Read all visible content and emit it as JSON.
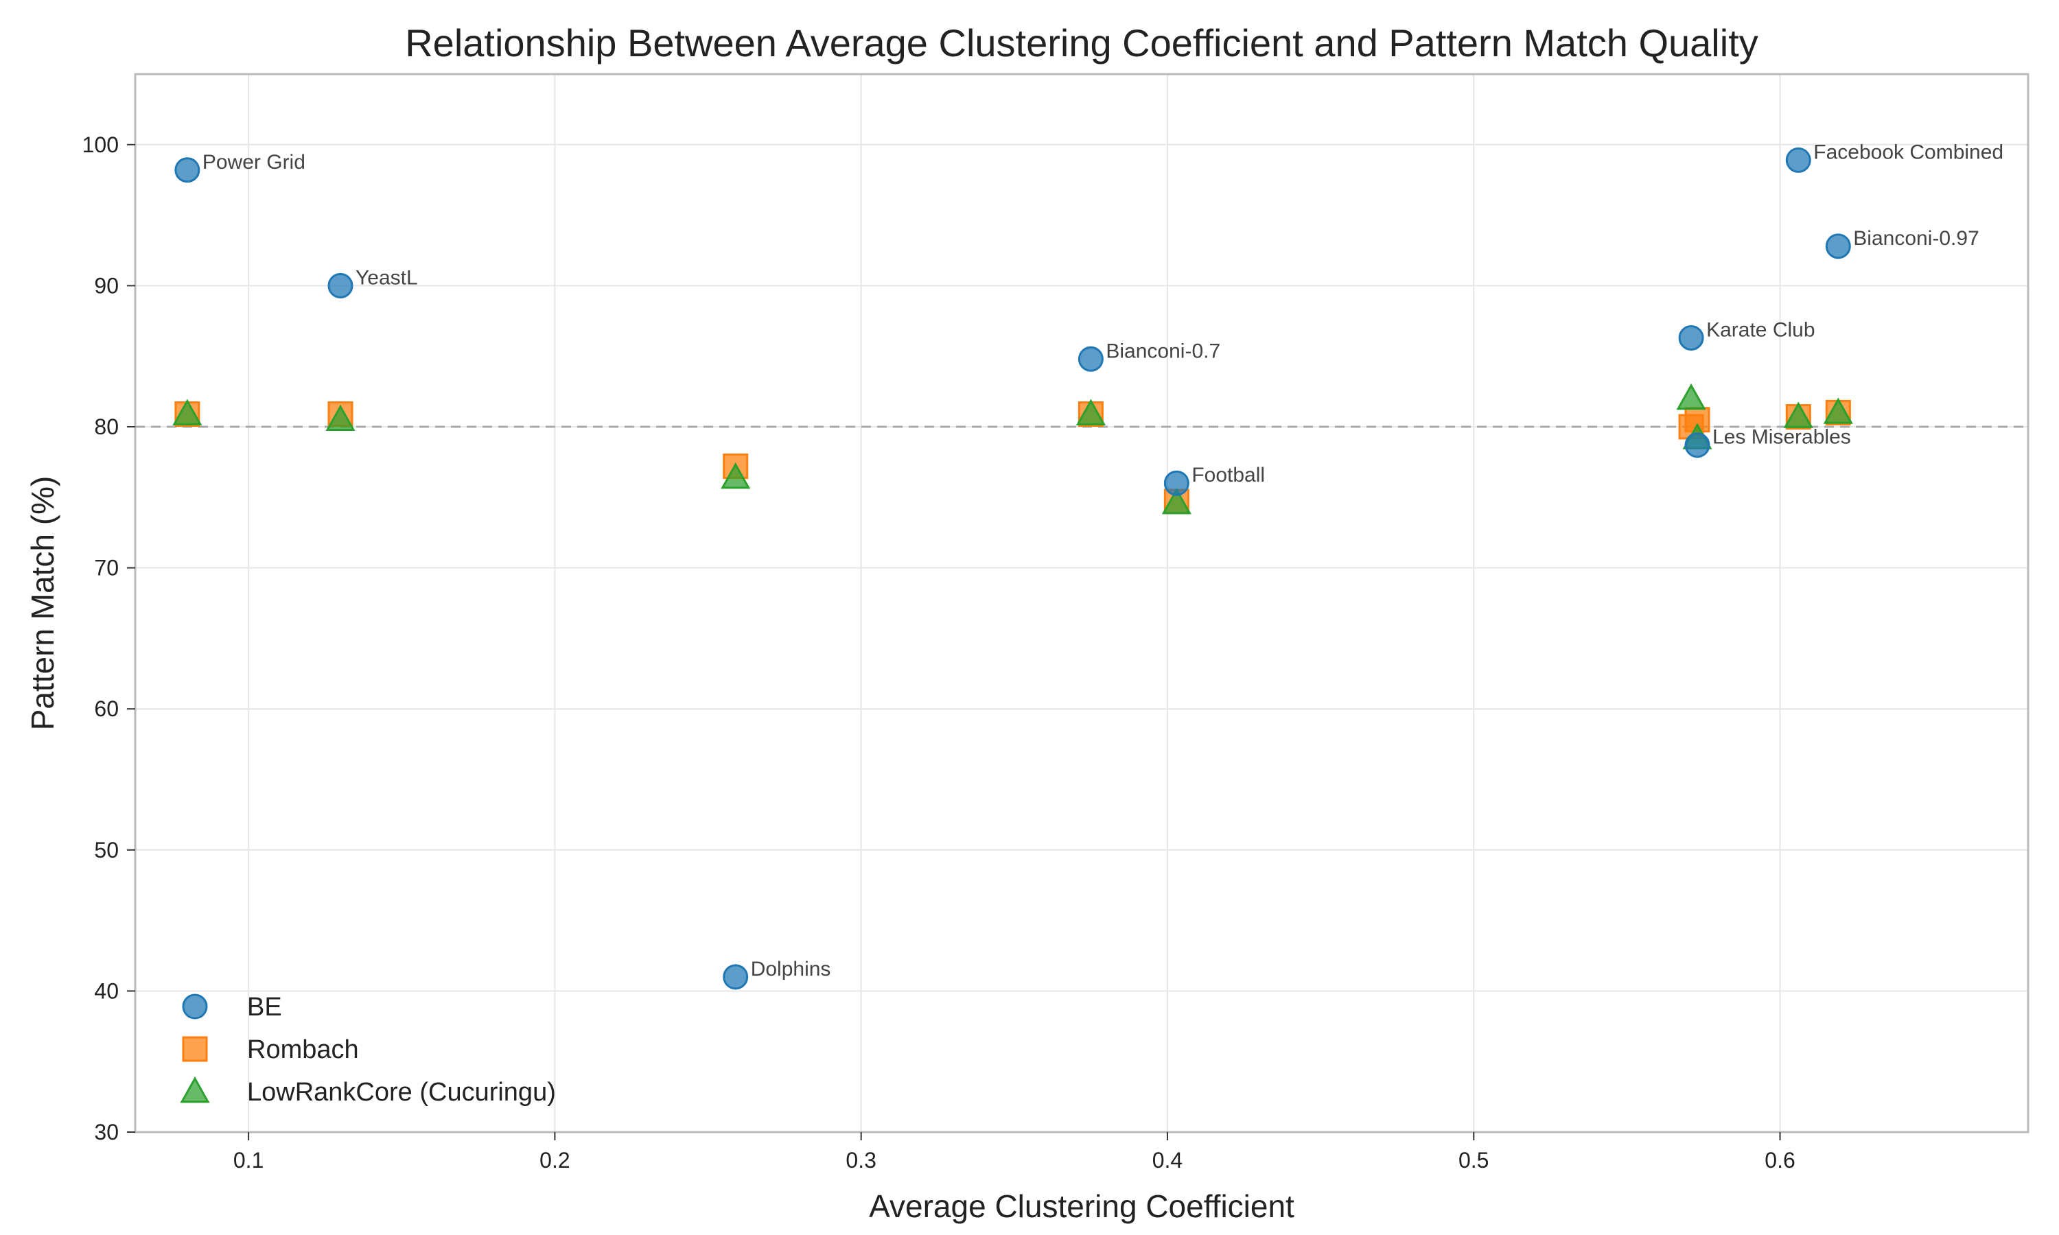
{
  "chart_data": {
    "type": "scatter",
    "title": "Relationship Between Average Clustering Coefficient and Pattern Match Quality",
    "xlabel": "Average Clustering Coefficient",
    "ylabel": "Pattern Match (%)",
    "xlim": [
      0.063,
      0.681
    ],
    "ylim": [
      30,
      105
    ],
    "xticks": [
      "0.1",
      "0.2",
      "0.3",
      "0.4",
      "0.5",
      "0.6"
    ],
    "xtick_values": [
      0.1,
      0.2,
      0.3,
      0.4,
      0.5,
      0.6
    ],
    "yticks": [
      "30",
      "40",
      "50",
      "60",
      "70",
      "80",
      "90",
      "100"
    ],
    "ytick_values": [
      30,
      40,
      50,
      60,
      70,
      80,
      90,
      100
    ],
    "grid": true,
    "reference_line": {
      "y": 80,
      "style": "dashed"
    },
    "legend_position": "lower-left",
    "networks": [
      "Power Grid",
      "YeastL",
      "Dolphins",
      "Bianconi-0.7",
      "Football",
      "Karate Club",
      "Les Miserables",
      "Facebook Combined",
      "Bianconi-0.97"
    ],
    "x": [
      0.08,
      0.13,
      0.259,
      0.375,
      0.403,
      0.571,
      0.573,
      0.606,
      0.619
    ],
    "series": [
      {
        "name": "BE",
        "marker": "circle",
        "color": "#1f77b4",
        "values": [
          98.2,
          90.0,
          41.0,
          84.8,
          76.0,
          86.3,
          78.7,
          98.9,
          92.8
        ]
      },
      {
        "name": "Rombach",
        "marker": "square",
        "color": "#ff7f0e",
        "values": [
          80.9,
          80.9,
          77.2,
          80.9,
          74.7,
          80.0,
          80.5,
          80.7,
          81.0
        ]
      },
      {
        "name": "LowRankCore (Cucuringu)",
        "marker": "triangle",
        "color": "#2ca02c",
        "values": [
          80.9,
          80.5,
          76.4,
          80.9,
          74.6,
          82.0,
          79.2,
          80.7,
          81.0
        ]
      }
    ]
  }
}
